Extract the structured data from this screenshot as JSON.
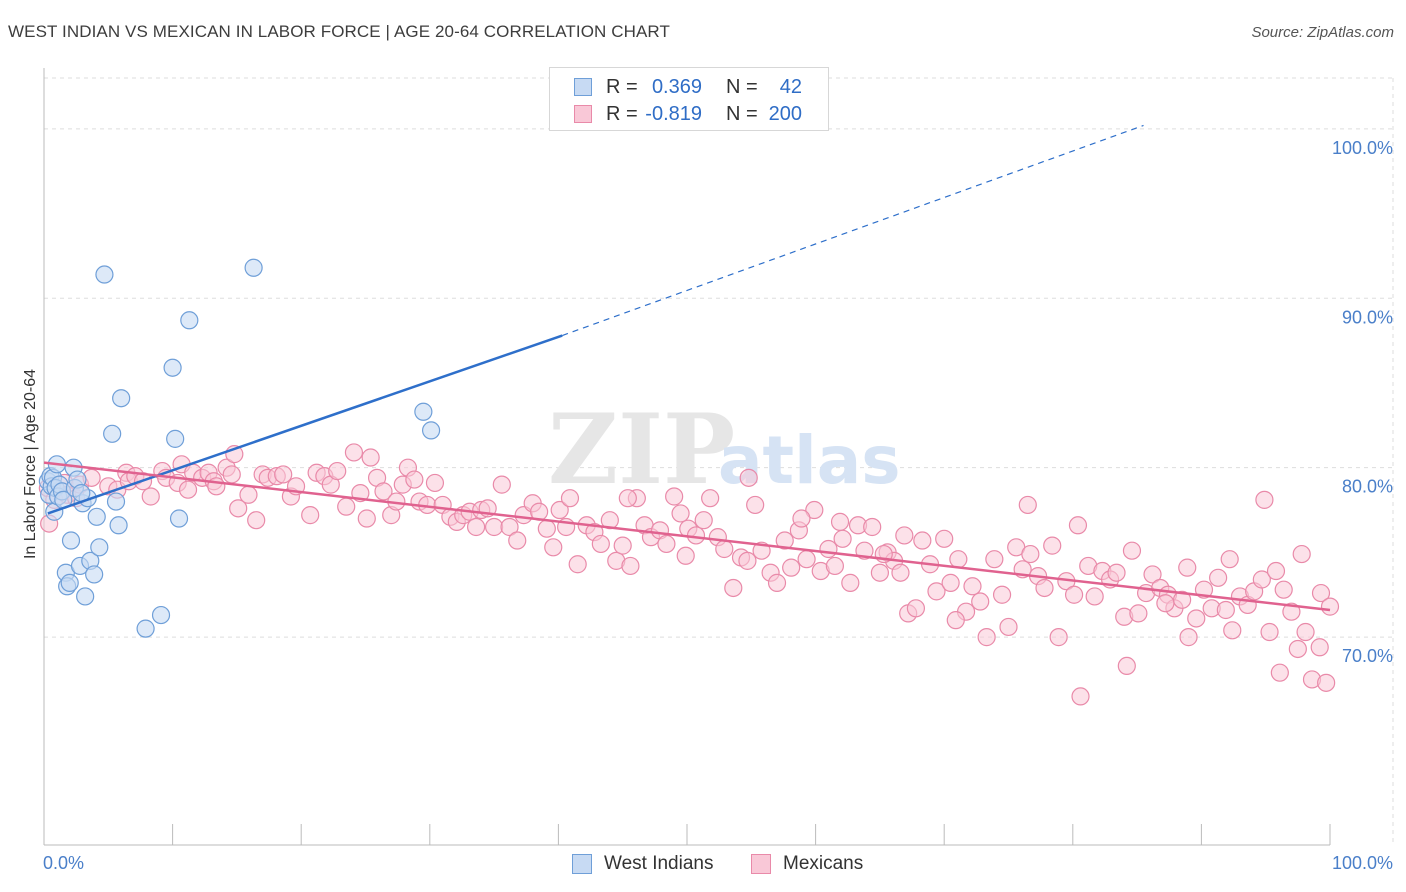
{
  "header": {
    "title": "WEST INDIAN VS MEXICAN IN LABOR FORCE | AGE 20-64 CORRELATION CHART",
    "source": "Source: ZipAtlas.com"
  },
  "legend": {
    "rows": [
      {
        "r_label": "R =",
        "r_value": "0.369",
        "n_label": "N =",
        "n_value": "42"
      },
      {
        "r_label": "R =",
        "r_value": "-0.819",
        "n_label": "N =",
        "n_value": "200"
      }
    ]
  },
  "bottom_legend": {
    "west_indians": "West Indians",
    "mexicans": "Mexicans"
  },
  "colors": {
    "west_indian_fill": "#c7daf3",
    "west_indian_stroke": "#6f9fd8",
    "west_indian_line": "#2e6fca",
    "mexican_fill": "#f9c8d7",
    "mexican_stroke": "#e98aa9",
    "mexican_line": "#e0628f",
    "tick_text": "#4a7fc9",
    "grid": "#dddddd"
  },
  "chart_data": {
    "type": "scatter",
    "title": "WEST INDIAN VS MEXICAN IN LABOR FORCE | AGE 20-64 CORRELATION CHART",
    "xlabel": "",
    "ylabel": "In Labor Force | Age 20-64",
    "xlim": [
      0,
      100
    ],
    "ylim": [
      59.5,
      103
    ],
    "x_tick_labels": [
      "0.0%",
      "100.0%"
    ],
    "y_ticks": [
      70,
      80,
      90,
      100
    ],
    "y_tick_labels": [
      "70.0%",
      "80.0%",
      "90.0%",
      "100.0%"
    ],
    "watermark": {
      "zip": "ZIP",
      "atlas": "atlas"
    },
    "series": [
      {
        "name": "West Indians",
        "r": 0.369,
        "n": 42,
        "trend": {
          "x0": 0.3,
          "y0": 77.3,
          "x1": 40.3,
          "y1": 87.8,
          "dash_to_x": 85.5,
          "dash_to_y": 100.2
        },
        "points": [
          [
            0.3,
            79.2
          ],
          [
            0.4,
            78.4
          ],
          [
            0.5,
            79.5
          ],
          [
            0.6,
            78.9
          ],
          [
            0.7,
            79.4
          ],
          [
            0.8,
            77.4
          ],
          [
            0.9,
            78.8
          ],
          [
            1.0,
            80.2
          ],
          [
            1.1,
            78.3
          ],
          [
            1.2,
            79.0
          ],
          [
            1.4,
            78.6
          ],
          [
            1.5,
            78.1
          ],
          [
            1.7,
            73.8
          ],
          [
            1.8,
            73.0
          ],
          [
            2.0,
            73.2
          ],
          [
            2.1,
            75.7
          ],
          [
            2.3,
            80.0
          ],
          [
            2.4,
            78.8
          ],
          [
            2.6,
            79.3
          ],
          [
            2.8,
            74.2
          ],
          [
            3.0,
            77.9
          ],
          [
            3.2,
            72.4
          ],
          [
            3.4,
            78.2
          ],
          [
            3.6,
            74.5
          ],
          [
            3.9,
            73.7
          ],
          [
            4.1,
            77.1
          ],
          [
            4.3,
            75.3
          ],
          [
            4.7,
            91.4
          ],
          [
            5.3,
            82.0
          ],
          [
            5.6,
            78.0
          ],
          [
            5.8,
            76.6
          ],
          [
            6.0,
            84.1
          ],
          [
            7.9,
            70.5
          ],
          [
            9.1,
            71.3
          ],
          [
            10.0,
            85.9
          ],
          [
            10.2,
            81.7
          ],
          [
            10.5,
            77.0
          ],
          [
            11.3,
            88.7
          ],
          [
            16.3,
            91.8
          ],
          [
            29.5,
            83.3
          ],
          [
            30.1,
            82.2
          ],
          [
            2.9,
            78.5
          ]
        ]
      },
      {
        "name": "Mexicans",
        "r": -0.819,
        "n": 200,
        "trend": {
          "x0": 0.0,
          "y0": 80.3,
          "x1": 100.0,
          "y1": 71.6
        },
        "points": [
          [
            0.3,
            78.8
          ],
          [
            0.4,
            76.7
          ],
          [
            0.8,
            78.1
          ],
          [
            1.6,
            79.1
          ],
          [
            1.8,
            78.4
          ],
          [
            2.5,
            78.2
          ],
          [
            2.8,
            79.0
          ],
          [
            3.7,
            79.4
          ],
          [
            5.0,
            78.9
          ],
          [
            5.7,
            78.7
          ],
          [
            6.4,
            79.7
          ],
          [
            6.6,
            79.2
          ],
          [
            7.1,
            79.5
          ],
          [
            7.7,
            79.2
          ],
          [
            8.3,
            78.3
          ],
          [
            9.2,
            79.8
          ],
          [
            9.5,
            79.4
          ],
          [
            10.4,
            79.1
          ],
          [
            10.7,
            80.2
          ],
          [
            11.2,
            78.7
          ],
          [
            11.6,
            79.7
          ],
          [
            12.3,
            79.4
          ],
          [
            12.8,
            79.7
          ],
          [
            13.2,
            79.2
          ],
          [
            13.4,
            78.9
          ],
          [
            14.2,
            80.0
          ],
          [
            14.6,
            79.6
          ],
          [
            14.8,
            80.8
          ],
          [
            15.1,
            77.6
          ],
          [
            15.9,
            78.4
          ],
          [
            16.5,
            76.9
          ],
          [
            17.0,
            79.6
          ],
          [
            17.4,
            79.4
          ],
          [
            18.1,
            79.5
          ],
          [
            18.6,
            79.6
          ],
          [
            19.2,
            78.3
          ],
          [
            19.6,
            78.9
          ],
          [
            20.7,
            77.2
          ],
          [
            21.2,
            79.7
          ],
          [
            21.8,
            79.5
          ],
          [
            22.3,
            79.0
          ],
          [
            22.8,
            79.8
          ],
          [
            23.5,
            77.7
          ],
          [
            24.1,
            80.9
          ],
          [
            24.6,
            78.5
          ],
          [
            25.1,
            77.0
          ],
          [
            25.4,
            80.6
          ],
          [
            25.9,
            79.4
          ],
          [
            26.4,
            78.6
          ],
          [
            27.0,
            77.2
          ],
          [
            27.4,
            78.0
          ],
          [
            27.9,
            79.0
          ],
          [
            28.3,
            80.0
          ],
          [
            28.8,
            79.3
          ],
          [
            29.2,
            78.0
          ],
          [
            29.8,
            77.8
          ],
          [
            30.4,
            79.1
          ],
          [
            31.0,
            77.8
          ],
          [
            31.6,
            77.1
          ],
          [
            32.1,
            76.8
          ],
          [
            32.6,
            77.2
          ],
          [
            33.1,
            77.4
          ],
          [
            33.6,
            76.5
          ],
          [
            34.0,
            77.5
          ],
          [
            34.5,
            77.6
          ],
          [
            35.0,
            76.5
          ],
          [
            35.6,
            79.0
          ],
          [
            36.2,
            76.5
          ],
          [
            36.8,
            75.7
          ],
          [
            37.3,
            77.2
          ],
          [
            38.0,
            77.9
          ],
          [
            38.5,
            77.4
          ],
          [
            39.1,
            76.4
          ],
          [
            39.6,
            75.3
          ],
          [
            40.1,
            77.5
          ],
          [
            40.9,
            78.2
          ],
          [
            41.5,
            74.3
          ],
          [
            42.2,
            76.6
          ],
          [
            42.8,
            76.2
          ],
          [
            43.3,
            75.5
          ],
          [
            44.0,
            76.9
          ],
          [
            44.5,
            74.5
          ],
          [
            45.0,
            75.4
          ],
          [
            45.6,
            74.2
          ],
          [
            46.1,
            78.2
          ],
          [
            46.7,
            76.6
          ],
          [
            47.2,
            75.9
          ],
          [
            47.9,
            76.3
          ],
          [
            48.4,
            75.5
          ],
          [
            49.0,
            78.3
          ],
          [
            49.5,
            77.3
          ],
          [
            50.1,
            76.4
          ],
          [
            50.7,
            76.0
          ],
          [
            51.3,
            76.9
          ],
          [
            51.8,
            78.2
          ],
          [
            52.4,
            75.9
          ],
          [
            52.9,
            75.2
          ],
          [
            53.6,
            72.9
          ],
          [
            54.2,
            74.7
          ],
          [
            54.7,
            74.5
          ],
          [
            55.3,
            77.8
          ],
          [
            55.8,
            75.1
          ],
          [
            56.5,
            73.8
          ],
          [
            57.0,
            73.2
          ],
          [
            57.6,
            75.7
          ],
          [
            58.1,
            74.1
          ],
          [
            58.7,
            76.3
          ],
          [
            59.3,
            74.6
          ],
          [
            59.9,
            77.5
          ],
          [
            60.4,
            73.9
          ],
          [
            61.0,
            75.2
          ],
          [
            61.5,
            74.2
          ],
          [
            62.1,
            75.8
          ],
          [
            62.7,
            73.2
          ],
          [
            63.3,
            76.6
          ],
          [
            63.8,
            75.1
          ],
          [
            64.4,
            76.5
          ],
          [
            65.0,
            73.8
          ],
          [
            65.6,
            75.0
          ],
          [
            66.1,
            74.5
          ],
          [
            66.6,
            73.8
          ],
          [
            67.2,
            71.4
          ],
          [
            67.8,
            71.7
          ],
          [
            68.3,
            75.7
          ],
          [
            68.9,
            74.3
          ],
          [
            69.4,
            72.7
          ],
          [
            70.0,
            75.8
          ],
          [
            70.5,
            73.2
          ],
          [
            71.1,
            74.6
          ],
          [
            71.7,
            71.5
          ],
          [
            72.2,
            73.0
          ],
          [
            72.8,
            72.1
          ],
          [
            73.3,
            70.0
          ],
          [
            73.9,
            74.6
          ],
          [
            74.5,
            72.5
          ],
          [
            75.0,
            70.6
          ],
          [
            75.6,
            75.3
          ],
          [
            76.1,
            74.0
          ],
          [
            76.7,
            74.9
          ],
          [
            77.3,
            73.6
          ],
          [
            77.8,
            72.9
          ],
          [
            78.4,
            75.4
          ],
          [
            78.9,
            70.0
          ],
          [
            79.5,
            73.3
          ],
          [
            80.1,
            72.5
          ],
          [
            80.6,
            66.5
          ],
          [
            81.2,
            74.2
          ],
          [
            81.7,
            72.4
          ],
          [
            82.3,
            73.9
          ],
          [
            82.9,
            73.4
          ],
          [
            83.4,
            73.8
          ],
          [
            84.0,
            71.2
          ],
          [
            84.6,
            75.1
          ],
          [
            85.1,
            71.4
          ],
          [
            85.7,
            72.6
          ],
          [
            86.2,
            73.7
          ],
          [
            86.8,
            72.9
          ],
          [
            87.4,
            72.5
          ],
          [
            87.9,
            71.7
          ],
          [
            88.5,
            72.2
          ],
          [
            89.0,
            70.0
          ],
          [
            89.6,
            71.1
          ],
          [
            90.2,
            72.8
          ],
          [
            90.8,
            71.7
          ],
          [
            91.3,
            73.5
          ],
          [
            91.9,
            71.6
          ],
          [
            92.4,
            70.4
          ],
          [
            93.0,
            72.4
          ],
          [
            93.6,
            71.9
          ],
          [
            94.1,
            72.7
          ],
          [
            94.7,
            73.4
          ],
          [
            95.3,
            70.3
          ],
          [
            95.8,
            73.9
          ],
          [
            96.4,
            72.8
          ],
          [
            97.0,
            71.5
          ],
          [
            97.5,
            69.3
          ],
          [
            98.1,
            70.3
          ],
          [
            98.6,
            67.5
          ],
          [
            99.2,
            69.4
          ],
          [
            99.7,
            67.3
          ],
          [
            40.6,
            76.5
          ],
          [
            45.4,
            78.2
          ],
          [
            49.9,
            74.8
          ],
          [
            54.8,
            79.4
          ],
          [
            61.9,
            76.8
          ],
          [
            66.9,
            76.0
          ],
          [
            76.5,
            77.8
          ],
          [
            84.2,
            68.3
          ],
          [
            88.9,
            74.1
          ],
          [
            94.9,
            78.1
          ],
          [
            97.8,
            74.9
          ],
          [
            99.3,
            72.6
          ],
          [
            100.0,
            71.8
          ],
          [
            96.1,
            67.9
          ],
          [
            92.2,
            74.6
          ],
          [
            87.2,
            72.0
          ],
          [
            80.4,
            76.6
          ],
          [
            70.9,
            71.0
          ],
          [
            65.3,
            74.9
          ],
          [
            58.9,
            77.0
          ]
        ]
      }
    ]
  }
}
